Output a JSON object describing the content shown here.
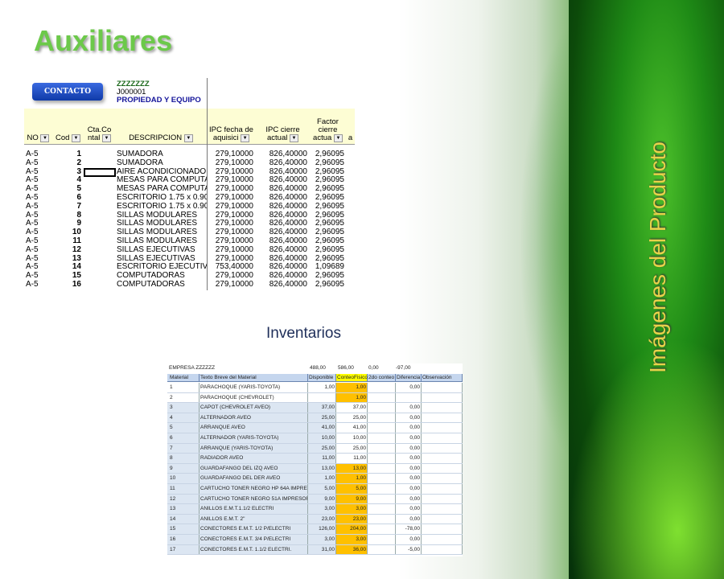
{
  "slide": {
    "title": "Auxiliares",
    "side_title": "Imágenes del Producto",
    "inventory_label": "Inventarios"
  },
  "colors": {
    "accent_green": "#6cc94a",
    "side_text": "#e8d24a",
    "highlight_yellow": "#ffc000"
  },
  "sheet1": {
    "button": "CONTACTO",
    "company": "ZZZZZZZ",
    "code": "J000001",
    "category": "PROPIEDAD Y EQUIPO",
    "headers": [
      "NO",
      "Cod",
      "Cta.Co ntal",
      "DESCRIPCION",
      "IPC fecha de aquisici",
      "IPC cierre actual",
      "Factor cierre actua",
      "a"
    ],
    "rows": [
      [
        "A-5",
        "1",
        "SUMADORA",
        "279,10000",
        "826,40000",
        "2,96095"
      ],
      [
        "A-5",
        "2",
        "SUMADORA",
        "279,10000",
        "826,40000",
        "2,96095"
      ],
      [
        "A-5",
        "3",
        "AIRE ACONDICIONADO",
        "279,10000",
        "826,40000",
        "2,96095"
      ],
      [
        "A-5",
        "4",
        "MESAS PARA COMPUTAI",
        "279,10000",
        "826,40000",
        "2,96095"
      ],
      [
        "A-5",
        "5",
        "MESAS PARA COMPUTAI",
        "279,10000",
        "826,40000",
        "2,96095"
      ],
      [
        "A-5",
        "6",
        "ESCRITORIO 1.75 x 0.90",
        "279,10000",
        "826,40000",
        "2,96095"
      ],
      [
        "A-5",
        "7",
        "ESCRITORIO 1.75 x 0.90",
        "279,10000",
        "826,40000",
        "2,96095"
      ],
      [
        "A-5",
        "8",
        "SILLAS MODULARES",
        "279,10000",
        "826,40000",
        "2,96095"
      ],
      [
        "A-5",
        "9",
        "SILLAS MODULARES",
        "279,10000",
        "826,40000",
        "2,96095"
      ],
      [
        "A-5",
        "10",
        "SILLAS MODULARES",
        "279,10000",
        "826,40000",
        "2,96095"
      ],
      [
        "A-5",
        "11",
        "SILLAS MODULARES",
        "279,10000",
        "826,40000",
        "2,96095"
      ],
      [
        "A-5",
        "12",
        "SILLAS EJECUTIVAS",
        "279,10000",
        "826,40000",
        "2,96095"
      ],
      [
        "A-5",
        "13",
        "SILLAS EJECUTIVAS",
        "279,10000",
        "826,40000",
        "2,96095"
      ],
      [
        "A-5",
        "14",
        "ESCRITORIO EJECUTIVO",
        "753,40000",
        "826,40000",
        "1,09689"
      ],
      [
        "A-5",
        "15",
        "COMPUTADORAS",
        "279,10000",
        "826,40000",
        "2,96095"
      ],
      [
        "A-5",
        "16",
        "COMPUTADORAS",
        "279,10000",
        "826,40000",
        "2,96095"
      ]
    ]
  },
  "sheet2": {
    "company": "EMPRESA ZZZZZZ",
    "totals": [
      "488,00",
      "586,00",
      "0,00",
      "-97,00"
    ],
    "headers": [
      "Material",
      "Texto Breve del Material",
      "Disponible",
      "ConteoFisico",
      "2do conteo",
      "Diferencia",
      "Observación"
    ],
    "rows": [
      [
        "1",
        "PARACHOQUE (YARIS-TOYOTA)",
        "1,00",
        "1,00",
        "",
        "0,00"
      ],
      [
        "2",
        "PARACHOQUE (CHEVROLET)",
        "",
        "1,00",
        "",
        ""
      ],
      [
        "3",
        "CAPOT (CHEVROLET AVEO)",
        "37,00",
        "37,00",
        "",
        "0,00"
      ],
      [
        "4",
        "ALTERNADOR AVEO",
        "25,00",
        "25,00",
        "",
        "0,00"
      ],
      [
        "5",
        "ARRANQUE AVEO",
        "41,00",
        "41,00",
        "",
        "0,00"
      ],
      [
        "6",
        "ALTERNADOR (YARIS-TOYOTA)",
        "10,00",
        "10,00",
        "",
        "0,00"
      ],
      [
        "7",
        "ARRANQUE (YARIS-TOYOTA)",
        "25,00",
        "25,00",
        "",
        "0,00"
      ],
      [
        "8",
        "RADIADOR AVEO",
        "11,00",
        "11,00",
        "",
        "0,00"
      ],
      [
        "9",
        "GUARDAFANGO DEL IZQ AVEO",
        "13,00",
        "13,00",
        "",
        "0,00"
      ],
      [
        "10",
        "GUARDAFANGO DEL DER AVEO",
        "1,00",
        "1,00",
        "",
        "0,00"
      ],
      [
        "11",
        "CARTUCHO TONER NEGRO HP 64A IMPRESORA HP",
        "5,00",
        "5,00",
        "",
        "0,00"
      ],
      [
        "12",
        "CARTUCHO TONER NEGRO 51A IMPRESORA HP LA",
        "9,00",
        "9,00",
        "",
        "0,00"
      ],
      [
        "13",
        "ANILLOS E.M.T.1.1/2 ELECTRI",
        "3,00",
        "3,00",
        "",
        "0,00"
      ],
      [
        "14",
        "ANILLOS E.M.T. 2\"",
        "23,00",
        "23,00",
        "",
        "0,00"
      ],
      [
        "15",
        "CONECTORES E.M.T. 1/2 P/ELECTRI",
        "126,00",
        "204,00",
        "",
        "-78,00"
      ],
      [
        "16",
        "CONECTORES E.M.T. 3/4 P/ELECTRI",
        "3,00",
        "3,00",
        "",
        "0,00"
      ],
      [
        "17",
        "CONECTORES E.M.T. 1.1/2 ELECTRI.",
        "31,00",
        "36,00",
        "",
        "-5,00"
      ]
    ]
  }
}
